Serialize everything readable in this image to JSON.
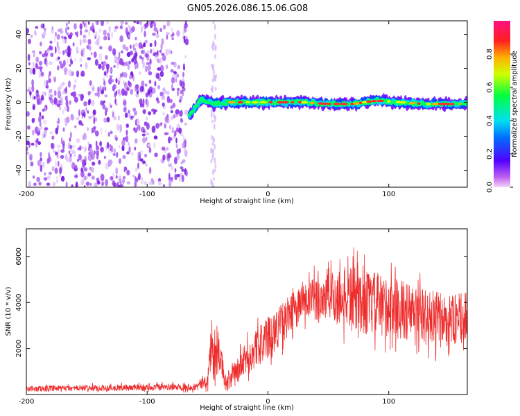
{
  "title": "GN05.2026.086.15.06.G08",
  "colors": {
    "snr_line": "#ee2b2b",
    "scatter_dots": "#8a2be2",
    "axis": "#000000"
  },
  "chart_data": [
    {
      "type": "heatmap",
      "name": "spectrogram",
      "xlabel": "Height of straight line (km)",
      "ylabel": "Frequency (Hz)",
      "xlim": [
        -200,
        165
      ],
      "ylim": [
        -50,
        48
      ],
      "xticks": [
        "-200",
        "-100",
        "0",
        "100"
      ],
      "xtick_values": [
        -200,
        -100,
        0,
        100
      ],
      "yticks": [
        "-40",
        "-20",
        "0",
        "20",
        "40"
      ],
      "ytick_values": [
        -40,
        -20,
        0,
        20,
        40
      ],
      "noise_region_x": [
        -200,
        -67
      ],
      "signal_ridge": {
        "x": [
          -65,
          -55,
          -45,
          -30,
          -10,
          10,
          30,
          50,
          70,
          90,
          110,
          130,
          150,
          165
        ],
        "freq": [
          -8,
          2,
          -1,
          0,
          0,
          0,
          0,
          -1,
          -1,
          1,
          0,
          -1,
          -1,
          -1
        ]
      },
      "colorbar": {
        "label": "Normalized spectral amplitude",
        "ticks": [
          "0.0",
          "0.2",
          "0.4",
          "0.6",
          "0.8"
        ],
        "tick_values": [
          0.0,
          0.2,
          0.4,
          0.6,
          0.8
        ],
        "range": [
          0,
          1
        ]
      }
    },
    {
      "type": "line",
      "name": "snr",
      "xlabel": "Height of straight line (km)",
      "ylabel": "SNR (10 * v/v)",
      "xlim": [
        -200,
        165
      ],
      "ylim": [
        0,
        7200
      ],
      "xticks": [
        "-200",
        "-100",
        "0",
        "100"
      ],
      "xtick_values": [
        -200,
        -100,
        0,
        100
      ],
      "yticks": [
        "2000",
        "4000",
        "6000"
      ],
      "ytick_values": [
        2000,
        4000,
        6000
      ],
      "envelope": {
        "x": [
          -200,
          -60,
          -50,
          -47,
          -45,
          -40,
          -35,
          -30,
          -20,
          -10,
          0,
          10,
          20,
          30,
          40,
          50,
          60,
          70,
          80,
          90,
          100,
          110,
          120,
          130,
          140,
          150,
          160,
          165
        ],
        "mean": [
          250,
          330,
          600,
          2200,
          1500,
          1800,
          400,
          700,
          1400,
          2000,
          2500,
          3000,
          3600,
          4000,
          4100,
          4300,
          4200,
          4200,
          4000,
          3900,
          3800,
          3700,
          3500,
          3400,
          3300,
          3200,
          3300,
          3500
        ],
        "spread": [
          120,
          150,
          300,
          1200,
          900,
          800,
          300,
          500,
          700,
          800,
          900,
          900,
          800,
          900,
          1000,
          1200,
          1300,
          1400,
          1400,
          1400,
          1300,
          1300,
          1300,
          1200,
          1200,
          1100,
          1100,
          1000
        ]
      }
    }
  ]
}
